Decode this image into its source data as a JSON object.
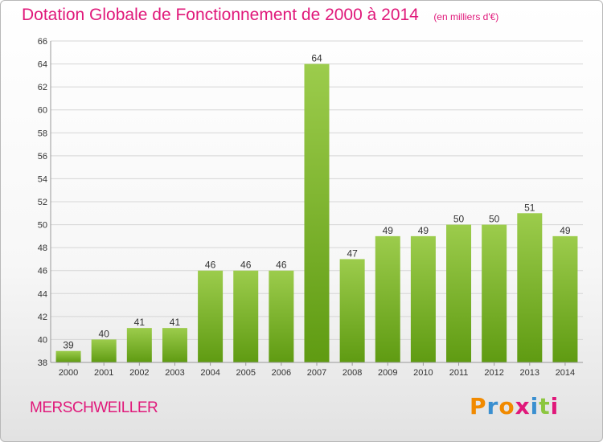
{
  "header": {
    "title": "Dotation Globale de Fonctionnement de 2000 à 2014",
    "unit": "(en milliers d'€)"
  },
  "footer": {
    "commune": "MERSCHWEILLER",
    "logo": "Proxiti",
    "logo_letters": [
      "P",
      "r",
      "o",
      "x",
      "i",
      "t",
      "i"
    ],
    "logo_colors": [
      "#f18a00",
      "#3a8fd0",
      "#f18a00",
      "#e0187a",
      "#3a8fd0",
      "#8cc63f",
      "#e0187a"
    ]
  },
  "colors": {
    "bar_light": "#9ccc4c",
    "bar_dark": "#5f9b12",
    "title": "#e0187a",
    "grid": "#d6d6d6",
    "axis_text": "#333333"
  },
  "chart_data": {
    "type": "bar",
    "title": "Dotation Globale de Fonctionnement de 2000 à 2014",
    "subtitle": "(en milliers d'€)",
    "xlabel": "",
    "ylabel": "",
    "categories": [
      "2000",
      "2001",
      "2002",
      "2003",
      "2004",
      "2005",
      "2006",
      "2007",
      "2008",
      "2009",
      "2010",
      "2011",
      "2012",
      "2013",
      "2014"
    ],
    "values": [
      39,
      40,
      41,
      41,
      46,
      46,
      46,
      64,
      47,
      49,
      49,
      50,
      50,
      51,
      49
    ],
    "ylim": [
      38,
      66
    ],
    "yticks": [
      38,
      40,
      42,
      44,
      46,
      48,
      50,
      52,
      54,
      56,
      58,
      60,
      62,
      64,
      66
    ],
    "grid": true,
    "legend": "none"
  }
}
